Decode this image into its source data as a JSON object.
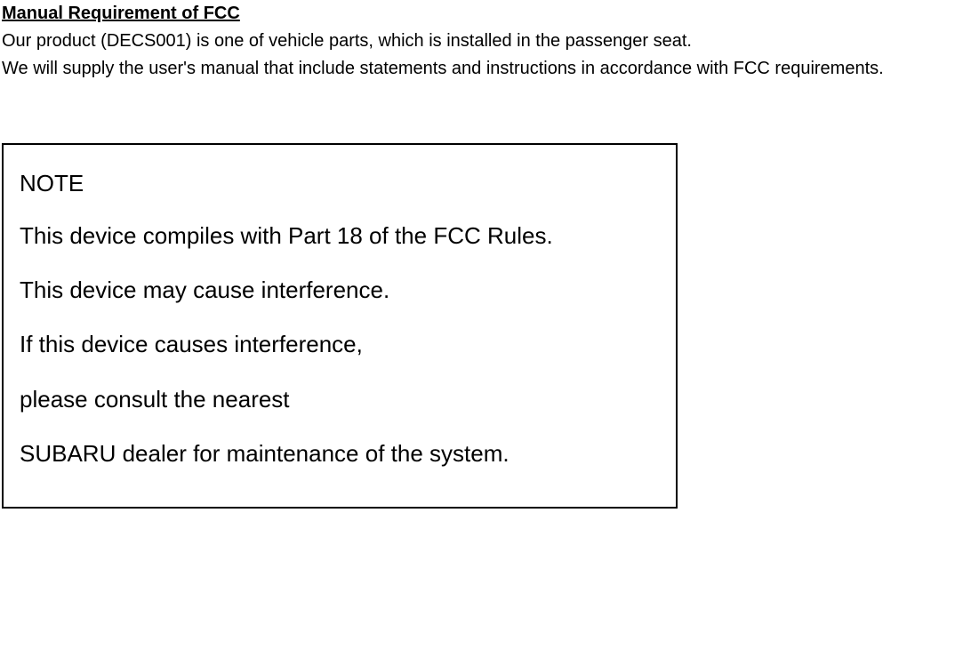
{
  "header": {
    "title": "Manual Requirement of FCC",
    "intro_line1": "Our product (DECS001) is one of vehicle parts, which is installed in the passenger seat.",
    "intro_line2": "We will supply the user's manual that include statements and instructions in accordance with FCC requirements."
  },
  "note": {
    "heading": "NOTE",
    "lines": [
      "This device compiles with Part 18 of the FCC Rules.",
      "This device may cause interference.",
      "If this device causes interference,",
      "please consult the nearest",
      "SUBARU dealer for maintenance of the system."
    ]
  },
  "style": {
    "page_bg": "#ffffff",
    "text_color": "#000000",
    "title_fontsize": 20,
    "intro_fontsize": 20,
    "note_fontsize": 26,
    "note_border_color": "#000000",
    "note_border_width": 2,
    "note_box_width": 760
  }
}
